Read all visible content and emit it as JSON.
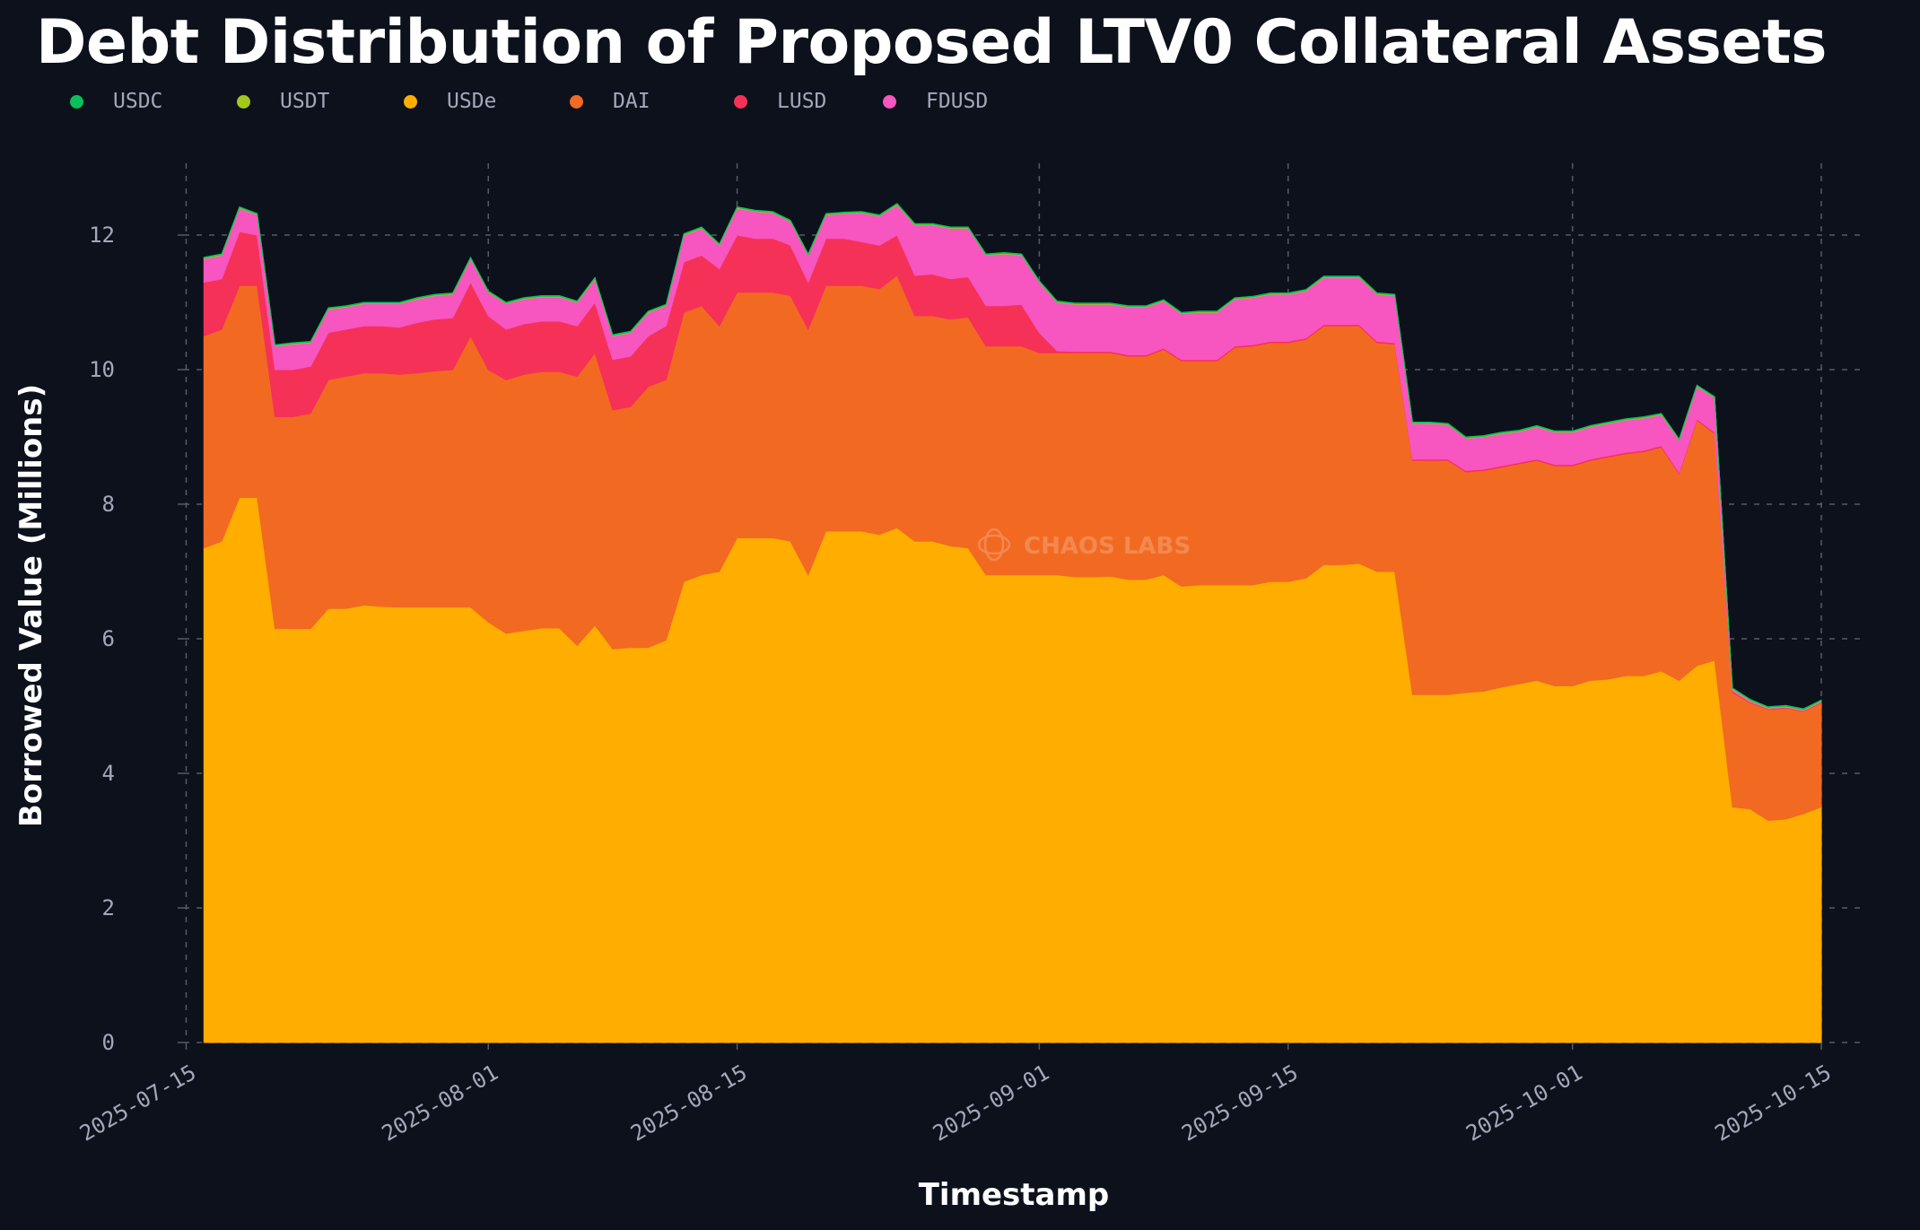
{
  "chart_data": {
    "type": "area",
    "stacked": true,
    "title": "Debt Distribution of Proposed LTV0 Collateral Assets",
    "xlabel": "Timestamp",
    "ylabel": "Borrowed Value (Millions)",
    "x_start": "2025-07-16",
    "x_step_days": 1,
    "xlim": [
      "2025-07-14",
      "2025-10-17"
    ],
    "ylim": [
      0,
      13
    ],
    "yticks": [
      0,
      2,
      4,
      6,
      8,
      10,
      12
    ],
    "xticks": [
      {
        "label": "2025-07-15",
        "day": -1
      },
      {
        "label": "2025-08-01",
        "day": 16
      },
      {
        "label": "2025-08-15",
        "day": 30
      },
      {
        "label": "2025-09-01",
        "day": 47
      },
      {
        "label": "2025-09-15",
        "day": 61
      },
      {
        "label": "2025-10-01",
        "day": 77
      },
      {
        "label": "2025-10-15",
        "day": 91
      }
    ],
    "grid": true,
    "legend_position": "top-left",
    "watermark": "CHAOS LABS",
    "series": [
      {
        "name": "USDe",
        "color": "#ffae00",
        "values": [
          7.35,
          7.45,
          8.1,
          8.1,
          6.15,
          6.15,
          6.15,
          6.45,
          6.45,
          6.5,
          6.48,
          6.47,
          6.47,
          6.47,
          6.47,
          6.47,
          6.25,
          6.08,
          6.12,
          6.16,
          6.16,
          5.9,
          6.2,
          5.85,
          5.87,
          5.87,
          5.98,
          6.85,
          6.95,
          7.0,
          7.5,
          7.5,
          7.5,
          7.45,
          6.95,
          7.6,
          7.6,
          7.6,
          7.55,
          7.65,
          7.45,
          7.45,
          7.38,
          7.35,
          6.95,
          6.95,
          6.95,
          6.95,
          6.95,
          6.92,
          6.92,
          6.93,
          6.88,
          6.88,
          6.95,
          6.78,
          6.8,
          6.8,
          6.8,
          6.8,
          6.85,
          6.85,
          6.9,
          7.1,
          7.1,
          7.12,
          7.0,
          7.0,
          5.17,
          5.17,
          5.17,
          5.2,
          5.22,
          5.28,
          5.33,
          5.38,
          5.3,
          5.3,
          5.38,
          5.4,
          5.45,
          5.45,
          5.52,
          5.38,
          5.6,
          5.68,
          3.5,
          3.47,
          3.3,
          3.32,
          3.4,
          3.5
        ]
      },
      {
        "name": "DAI",
        "color": "#f26a21",
        "values": [
          3.15,
          3.15,
          3.15,
          3.15,
          3.15,
          3.15,
          3.2,
          3.4,
          3.45,
          3.45,
          3.47,
          3.46,
          3.48,
          3.51,
          3.53,
          4.03,
          3.75,
          3.77,
          3.81,
          3.81,
          3.81,
          4.0,
          4.05,
          3.55,
          3.58,
          3.88,
          3.87,
          4.0,
          4.0,
          3.65,
          3.65,
          3.65,
          3.65,
          3.65,
          3.65,
          3.65,
          3.65,
          3.65,
          3.65,
          3.75,
          3.35,
          3.35,
          3.37,
          3.43,
          3.4,
          3.4,
          3.4,
          3.3,
          3.3,
          3.33,
          3.33,
          3.32,
          3.32,
          3.32,
          3.35,
          3.35,
          3.33,
          3.33,
          3.53,
          3.55,
          3.55,
          3.55,
          3.55,
          3.55,
          3.55,
          3.53,
          3.4,
          3.38,
          3.48,
          3.48,
          3.48,
          3.28,
          3.28,
          3.27,
          3.27,
          3.27,
          3.27,
          3.27,
          3.27,
          3.3,
          3.3,
          3.33,
          3.33,
          3.07,
          3.65,
          3.37,
          1.7,
          1.58,
          1.65,
          1.65,
          1.52,
          1.55
        ]
      },
      {
        "name": "LUSD",
        "color": "#f53158",
        "values": [
          0.8,
          0.75,
          0.8,
          0.75,
          0.7,
          0.7,
          0.7,
          0.7,
          0.7,
          0.7,
          0.7,
          0.7,
          0.75,
          0.77,
          0.77,
          0.8,
          0.8,
          0.75,
          0.75,
          0.75,
          0.75,
          0.75,
          0.75,
          0.75,
          0.75,
          0.75,
          0.8,
          0.75,
          0.75,
          0.85,
          0.85,
          0.8,
          0.8,
          0.75,
          0.7,
          0.7,
          0.7,
          0.65,
          0.65,
          0.6,
          0.6,
          0.62,
          0.6,
          0.6,
          0.6,
          0.6,
          0.62,
          0.3,
          0.03,
          0.02,
          0.02,
          0.02,
          0.02,
          0.02,
          0.02,
          0.02,
          0.02,
          0.02,
          0.02,
          0.02,
          0.02,
          0.02,
          0.02,
          0.02,
          0.02,
          0.02,
          0.02,
          0.02,
          0.02,
          0.02,
          0.02,
          0.02,
          0.02,
          0.02,
          0.02,
          0.02,
          0.02,
          0.02,
          0.02,
          0.02,
          0.02,
          0.02,
          0.02,
          0.02,
          0.02,
          0.02,
          0.02,
          0.01,
          0.01,
          0.01,
          0.01,
          0.01
        ]
      },
      {
        "name": "FDUSD",
        "color": "#f755c0",
        "values": [
          0.35,
          0.35,
          0.35,
          0.3,
          0.35,
          0.38,
          0.35,
          0.35,
          0.33,
          0.33,
          0.33,
          0.35,
          0.35,
          0.35,
          0.35,
          0.35,
          0.35,
          0.38,
          0.37,
          0.36,
          0.36,
          0.35,
          0.35,
          0.35,
          0.35,
          0.35,
          0.3,
          0.4,
          0.4,
          0.35,
          0.4,
          0.4,
          0.38,
          0.35,
          0.4,
          0.35,
          0.37,
          0.43,
          0.43,
          0.45,
          0.75,
          0.73,
          0.75,
          0.72,
          0.75,
          0.77,
          0.73,
          0.75,
          0.72,
          0.7,
          0.7,
          0.7,
          0.71,
          0.71,
          0.7,
          0.68,
          0.7,
          0.7,
          0.7,
          0.7,
          0.7,
          0.7,
          0.7,
          0.7,
          0.7,
          0.7,
          0.7,
          0.7,
          0.53,
          0.53,
          0.51,
          0.48,
          0.48,
          0.48,
          0.46,
          0.48,
          0.48,
          0.48,
          0.48,
          0.48,
          0.48,
          0.48,
          0.46,
          0.48,
          0.48,
          0.51,
          0.03,
          0.02,
          0.01,
          0.01,
          0.01,
          0.01
        ]
      },
      {
        "name": "USDT",
        "color": "#a3c71b",
        "values": [
          0.01,
          0.01,
          0.01,
          0.01,
          0.01,
          0.01,
          0.01,
          0.01,
          0.01,
          0.01,
          0.01,
          0.01,
          0.01,
          0.01,
          0.01,
          0.01,
          0.01,
          0.01,
          0.01,
          0.01,
          0.01,
          0.01,
          0.01,
          0.01,
          0.01,
          0.01,
          0.01,
          0.01,
          0.01,
          0.01,
          0.01,
          0.01,
          0.01,
          0.01,
          0.01,
          0.01,
          0.01,
          0.01,
          0.01,
          0.01,
          0.01,
          0.01,
          0.01,
          0.01,
          0.01,
          0.01,
          0.01,
          0.01,
          0.01,
          0.01,
          0.01,
          0.01,
          0.01,
          0.01,
          0.01,
          0.01,
          0.01,
          0.01,
          0.01,
          0.01,
          0.01,
          0.01,
          0.01,
          0.01,
          0.01,
          0.01,
          0.01,
          0.01,
          0.01,
          0.01,
          0.01,
          0.01,
          0.01,
          0.01,
          0.01,
          0.01,
          0.01,
          0.01,
          0.01,
          0.01,
          0.01,
          0.01,
          0.01,
          0.01,
          0.01,
          0.01,
          0.01,
          0.01,
          0.01,
          0.01,
          0.01,
          0.01
        ]
      },
      {
        "name": "USDC",
        "color": "#0bbf5b",
        "values": [
          0.01,
          0.01,
          0.01,
          0.01,
          0.01,
          0.01,
          0.01,
          0.01,
          0.01,
          0.01,
          0.01,
          0.01,
          0.01,
          0.01,
          0.01,
          0.01,
          0.01,
          0.01,
          0.01,
          0.01,
          0.01,
          0.01,
          0.01,
          0.01,
          0.01,
          0.01,
          0.01,
          0.01,
          0.01,
          0.01,
          0.01,
          0.01,
          0.01,
          0.01,
          0.01,
          0.01,
          0.01,
          0.01,
          0.01,
          0.01,
          0.01,
          0.01,
          0.01,
          0.01,
          0.01,
          0.01,
          0.01,
          0.01,
          0.01,
          0.01,
          0.01,
          0.01,
          0.01,
          0.01,
          0.01,
          0.01,
          0.01,
          0.01,
          0.01,
          0.01,
          0.01,
          0.01,
          0.01,
          0.01,
          0.01,
          0.01,
          0.01,
          0.01,
          0.01,
          0.01,
          0.01,
          0.01,
          0.01,
          0.01,
          0.01,
          0.01,
          0.01,
          0.01,
          0.01,
          0.01,
          0.01,
          0.01,
          0.01,
          0.01,
          0.01,
          0.01,
          0.01,
          0.01,
          0.01,
          0.01,
          0.01,
          0.01
        ]
      }
    ],
    "legend": [
      {
        "name": "USDC",
        "color": "#0bbf5b"
      },
      {
        "name": "USDT",
        "color": "#a3c71b"
      },
      {
        "name": "USDe",
        "color": "#ffae00"
      },
      {
        "name": "DAI",
        "color": "#f26a21"
      },
      {
        "name": "LUSD",
        "color": "#f53158"
      },
      {
        "name": "FDUSD",
        "color": "#f755c0"
      }
    ]
  }
}
